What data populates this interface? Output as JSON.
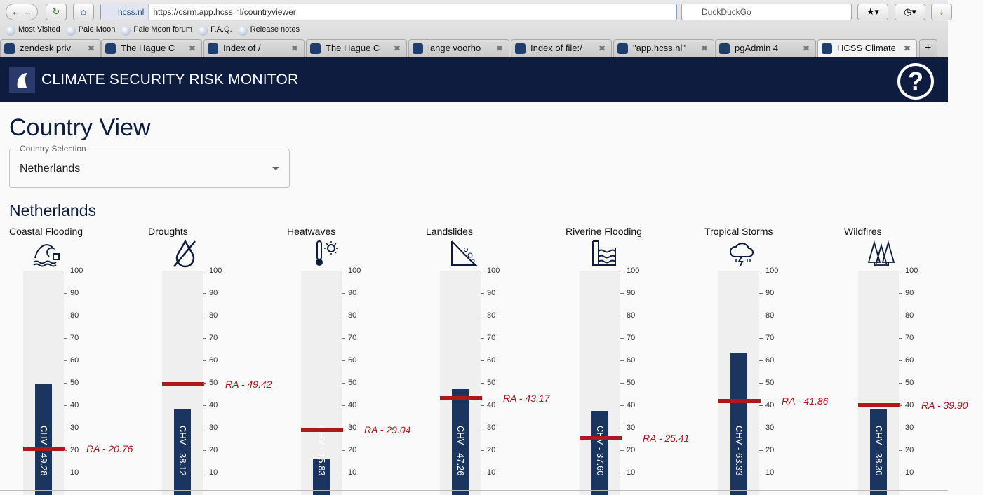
{
  "browser": {
    "site_identity": "hcss.nl",
    "url": "https://csrm.app.hcss.nl/countryviewer",
    "search_placeholder": "DuckDuckGo",
    "bookmarks": [
      "Most Visited",
      "Pale Moon",
      "Pale Moon forum",
      "F.A.Q.",
      "Release notes"
    ],
    "tabs": [
      {
        "label": "zendesk priv",
        "active": false
      },
      {
        "label": "The Hague C",
        "active": false
      },
      {
        "label": "Index of /",
        "active": false
      },
      {
        "label": "The Hague C",
        "active": false
      },
      {
        "label": "lange voorho",
        "active": false
      },
      {
        "label": "Index of file:/",
        "active": false
      },
      {
        "label": "\"app.hcss.nl\"",
        "active": false
      },
      {
        "label": "pgAdmin 4",
        "active": false
      },
      {
        "label": "HCSS Climate",
        "active": true
      }
    ]
  },
  "app": {
    "title": "CLIMATE SECURITY RISK MONITOR",
    "help": "?"
  },
  "page": {
    "title": "Country View",
    "selection_label": "Country Selection",
    "selected_country": "Netherlands",
    "country_heading": "Netherlands"
  },
  "colors": {
    "header": "#0e1c40",
    "bar": "#1a3560",
    "ra": "#b0171b"
  },
  "chart_data": {
    "type": "bar",
    "ylim": [
      0,
      100
    ],
    "yticks": [
      10,
      20,
      30,
      40,
      50,
      60,
      70,
      80,
      90,
      100
    ],
    "hazards": [
      {
        "name": "Coastal Flooding",
        "icon": "wave-icon",
        "chv": 49.28,
        "ra": 20.76
      },
      {
        "name": "Droughts",
        "icon": "no-water-drop-icon",
        "chv": 38.12,
        "ra": 49.42
      },
      {
        "name": "Heatwaves",
        "icon": "thermometer-sun-icon",
        "chv": 15.83,
        "ra": 29.04
      },
      {
        "name": "Landslides",
        "icon": "landslide-icon",
        "chv": 47.26,
        "ra": 43.17
      },
      {
        "name": "Riverine Flooding",
        "icon": "flood-icon",
        "chv": 37.6,
        "ra": 25.41
      },
      {
        "name": "Tropical Storms",
        "icon": "storm-cloud-icon",
        "chv": 63.33,
        "ra": 41.86
      },
      {
        "name": "Wildfires",
        "icon": "forest-fire-icon",
        "chv": 38.3,
        "ra": 39.9
      }
    ]
  }
}
